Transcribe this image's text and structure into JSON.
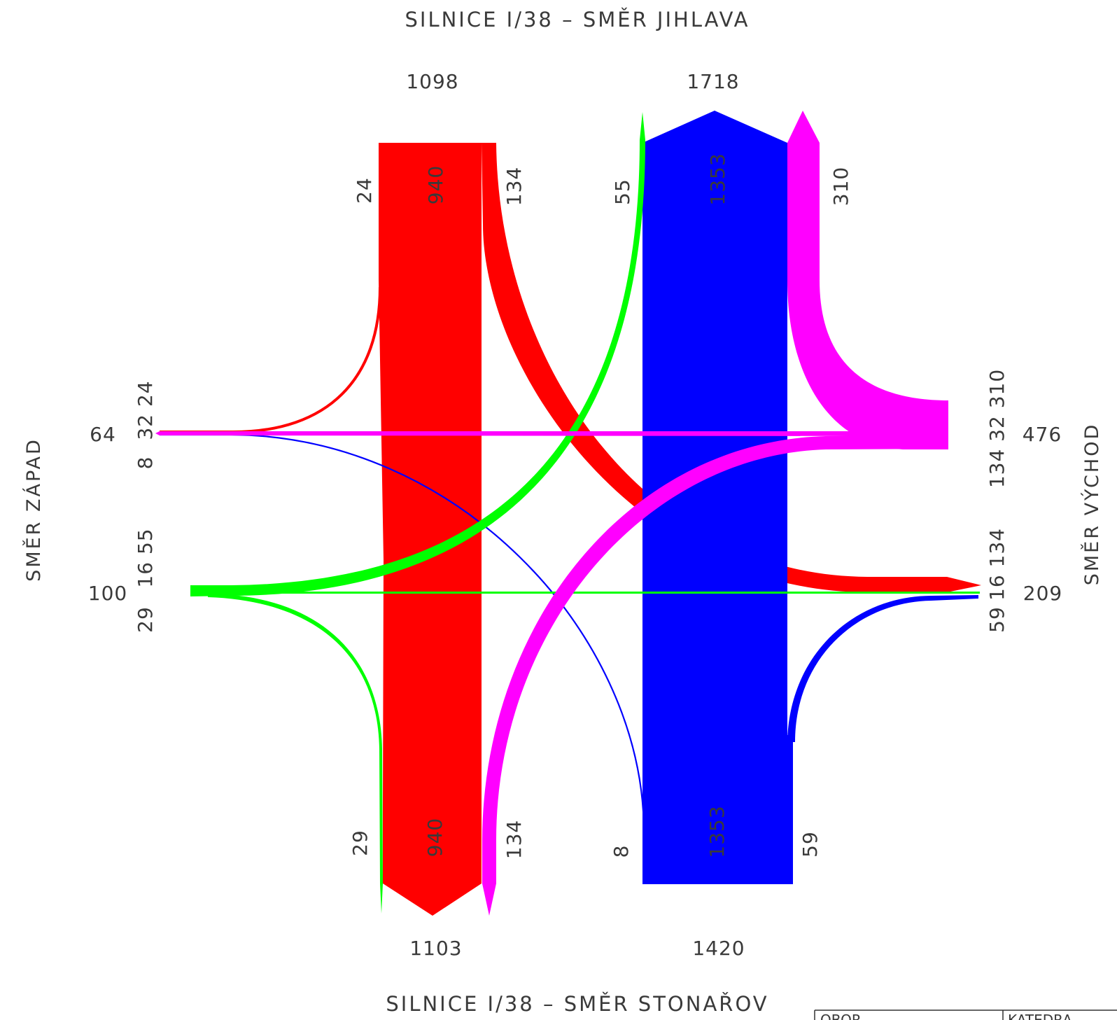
{
  "roads": {
    "north": "SILNICE I/38 – SMĚR JIHLAVA",
    "south": "SILNICE I/38 – SMĚR STONAŘOV",
    "west": "SMĚR ZÁPAD",
    "east": "SMĚR VÝCHOD"
  },
  "totals": {
    "north_in": "1098",
    "north_out": "1718",
    "south_out": "1103",
    "south_in": "1420",
    "west": "64",
    "west2": "100",
    "east": "476",
    "east2": "209"
  },
  "movements": {
    "n_24": "24",
    "n_940": "940",
    "n_134": "134",
    "n_55": "55",
    "n_1353": "1353",
    "n_310": "310",
    "s_29": "29",
    "s_940": "940",
    "s_134": "134",
    "s_8": "8",
    "s_1353": "1353",
    "s_59": "59",
    "w_a": "32 24",
    "w_b": "8",
    "w_c": "16 55",
    "w_d": "29",
    "e_a": "134 32 310",
    "e_b": "16 134",
    "e_c": "59"
  },
  "title_block": {
    "left": "OBOR",
    "right": "KATEDRA"
  },
  "colors": {
    "red": "#ff0000",
    "blue": "#0000ff",
    "green": "#00ff00",
    "magenta": "#ff00ff",
    "text": "#3a3a3a"
  }
}
